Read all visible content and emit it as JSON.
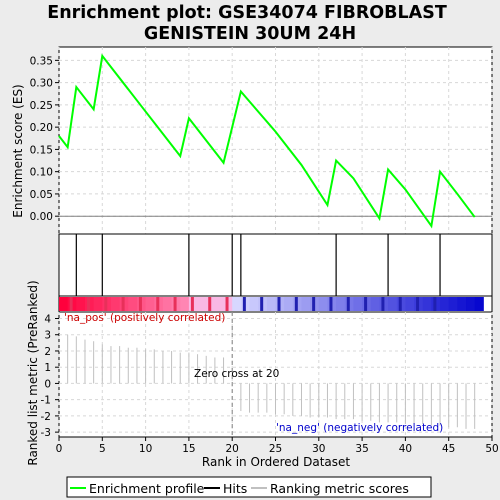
{
  "chart_data": {
    "type": "line",
    "title_line1": "Enrichment plot: GSE34074 FIBROBLAST",
    "title_line2": "GENISTEIN 30UM 24H",
    "xlabel": "Rank in Ordered Dataset",
    "ylabel_top": "Enrichment score (ES)",
    "ylabel_bottom": "Ranked list metric (PreRanked)",
    "xlim": [
      0,
      50
    ],
    "x_ticks": [
      0,
      5,
      10,
      15,
      20,
      25,
      30,
      35,
      40,
      45,
      50
    ],
    "es_ylim": [
      -0.04,
      0.38
    ],
    "es_y_ticks": [
      0.0,
      0.05,
      0.1,
      0.15,
      0.2,
      0.25,
      0.3,
      0.35
    ],
    "es_tick_labels": [
      "0.00",
      "0.05",
      "0.10",
      "0.15",
      "0.20",
      "0.25",
      "0.30",
      "0.35"
    ],
    "metric_ylim": [
      -3.3,
      4.4
    ],
    "metric_y_ticks": [
      -3,
      -2,
      -1,
      0,
      1,
      2,
      3,
      4
    ],
    "es_series": {
      "name": "Enrichment profile",
      "color": "#00ff00",
      "x": [
        0,
        1,
        2,
        4,
        5,
        9,
        10,
        14,
        15,
        19,
        21,
        25,
        28,
        31,
        32,
        34,
        37,
        38,
        40,
        43,
        44,
        46,
        48
      ],
      "y": [
        0.18,
        0.155,
        0.29,
        0.24,
        0.36,
        0.26,
        0.235,
        0.135,
        0.22,
        0.12,
        0.28,
        0.19,
        0.115,
        0.025,
        0.125,
        0.085,
        -0.005,
        0.105,
        0.06,
        -0.022,
        0.1,
        0.05,
        -0.002
      ]
    },
    "hits": [
      2,
      5,
      15,
      20,
      21,
      32,
      38,
      44
    ],
    "ranking_metric": {
      "x": [
        1,
        2,
        3,
        4,
        5,
        6,
        7,
        8,
        9,
        10,
        11,
        12,
        13,
        14,
        15,
        16,
        17,
        18,
        19,
        20,
        21,
        22,
        23,
        24,
        25,
        26,
        27,
        28,
        29,
        30,
        31,
        32,
        33,
        34,
        35,
        36,
        37,
        38,
        39,
        40,
        41,
        42,
        43,
        44,
        45,
        46,
        47,
        48
      ],
      "values": [
        3.0,
        2.9,
        2.7,
        2.6,
        2.4,
        2.3,
        2.3,
        2.2,
        2.2,
        2.1,
        2.1,
        2.0,
        2.0,
        1.9,
        1.9,
        1.8,
        1.7,
        1.6,
        1.6,
        0.0,
        -1.7,
        -1.8,
        -1.8,
        -1.8,
        -1.9,
        -1.9,
        -2.0,
        -2.0,
        -2.1,
        -2.1,
        -2.1,
        -2.2,
        -2.2,
        -2.2,
        -2.3,
        -2.3,
        -2.4,
        -2.4,
        -2.4,
        -2.5,
        -2.5,
        -2.5,
        -2.6,
        -2.6,
        -2.7,
        -2.7,
        -2.8,
        -2.8
      ]
    },
    "zero_cross_rank": 20,
    "annotations": {
      "pos": "'na_pos' (positively correlated)",
      "neg": "'na_neg' (negatively correlated)",
      "zero": "Zero cross at 20"
    },
    "legend": [
      {
        "label": "Enrichment profile",
        "color": "#00ff00"
      },
      {
        "label": "Hits",
        "color": "#000000"
      },
      {
        "label": "Ranking metric scores",
        "color": "#c0c0c0"
      }
    ],
    "colors": {
      "pos_label": "#cc0000",
      "neg_label": "#0000cc",
      "zero_line": "#808080",
      "metric_bar": "#c0c0c0"
    }
  }
}
